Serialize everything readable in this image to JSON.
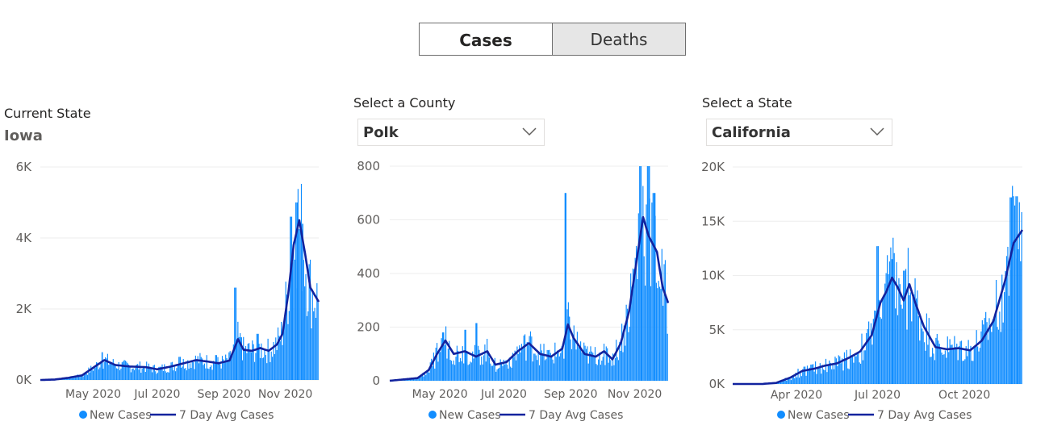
{
  "tabs": {
    "cases_label": "Cases",
    "deaths_label": "Deaths"
  },
  "panels": {
    "state": {
      "heading": "Current State",
      "value": "Iowa"
    },
    "county": {
      "heading": "Select a County",
      "value": "Polk"
    },
    "select_state": {
      "heading": "Select a State",
      "value": "California"
    }
  },
  "colors": {
    "bars": "#118dff",
    "avg": "#12239e",
    "grid": "#eeeeee"
  },
  "chart_data": [
    {
      "type": "bar",
      "name": "Iowa",
      "x_ticks": [
        "May 2020",
        "Jul 2020",
        "Sep 2020",
        "Nov 2020"
      ],
      "x_tick_pos": [
        0.19,
        0.42,
        0.66,
        0.88
      ],
      "y_ticks": [
        "0K",
        "2K",
        "4K",
        "6K"
      ],
      "y_tick_values": [
        0,
        2000,
        4000,
        6000
      ],
      "ylim": [
        0,
        6000
      ],
      "legend": [
        "New Cases",
        "7 Day Avg Cases"
      ],
      "avg_profile": [
        [
          0,
          0
        ],
        [
          0.05,
          10
        ],
        [
          0.1,
          60
        ],
        [
          0.15,
          130
        ],
        [
          0.2,
          400
        ],
        [
          0.23,
          560
        ],
        [
          0.27,
          420
        ],
        [
          0.32,
          380
        ],
        [
          0.38,
          360
        ],
        [
          0.42,
          300
        ],
        [
          0.47,
          380
        ],
        [
          0.52,
          480
        ],
        [
          0.56,
          560
        ],
        [
          0.6,
          520
        ],
        [
          0.64,
          470
        ],
        [
          0.68,
          550
        ],
        [
          0.71,
          1150
        ],
        [
          0.73,
          850
        ],
        [
          0.76,
          820
        ],
        [
          0.79,
          900
        ],
        [
          0.82,
          820
        ],
        [
          0.85,
          1000
        ],
        [
          0.87,
          1300
        ],
        [
          0.89,
          2400
        ],
        [
          0.91,
          3800
        ],
        [
          0.93,
          4500
        ],
        [
          0.95,
          3600
        ],
        [
          0.97,
          2600
        ],
        [
          1,
          2200
        ]
      ],
      "spikes": [
        [
          0.22,
          780
        ],
        [
          0.5,
          650
        ],
        [
          0.63,
          700
        ],
        [
          0.7,
          2600
        ],
        [
          0.72,
          1200
        ],
        [
          0.78,
          1300
        ],
        [
          0.9,
          4600
        ],
        [
          0.92,
          5000
        ],
        [
          0.94,
          4400
        ]
      ]
    },
    {
      "type": "bar",
      "name": "Polk",
      "x_ticks": [
        "May 2020",
        "Jul 2020",
        "Sep 2020",
        "Nov 2020"
      ],
      "x_tick_pos": [
        0.18,
        0.41,
        0.65,
        0.88
      ],
      "y_ticks": [
        "0",
        "200",
        "400",
        "600",
        "800"
      ],
      "y_tick_values": [
        0,
        200,
        400,
        600,
        800
      ],
      "ylim": [
        0,
        800
      ],
      "legend": [
        "New Cases",
        "7 Day Avg Cases"
      ],
      "avg_profile": [
        [
          0,
          0
        ],
        [
          0.05,
          5
        ],
        [
          0.1,
          10
        ],
        [
          0.14,
          40
        ],
        [
          0.17,
          100
        ],
        [
          0.2,
          150
        ],
        [
          0.23,
          100
        ],
        [
          0.27,
          110
        ],
        [
          0.31,
          90
        ],
        [
          0.35,
          110
        ],
        [
          0.38,
          60
        ],
        [
          0.42,
          70
        ],
        [
          0.46,
          110
        ],
        [
          0.5,
          140
        ],
        [
          0.54,
          100
        ],
        [
          0.58,
          90
        ],
        [
          0.62,
          120
        ],
        [
          0.64,
          210
        ],
        [
          0.66,
          160
        ],
        [
          0.7,
          100
        ],
        [
          0.74,
          90
        ],
        [
          0.77,
          110
        ],
        [
          0.8,
          80
        ],
        [
          0.83,
          140
        ],
        [
          0.86,
          260
        ],
        [
          0.89,
          470
        ],
        [
          0.91,
          610
        ],
        [
          0.93,
          540
        ],
        [
          0.96,
          480
        ],
        [
          0.98,
          350
        ],
        [
          1,
          290
        ]
      ],
      "spikes": [
        [
          0.19,
          180
        ],
        [
          0.27,
          190
        ],
        [
          0.31,
          215
        ],
        [
          0.63,
          700
        ],
        [
          0.64,
          240
        ],
        [
          0.9,
          810
        ],
        [
          0.93,
          810
        ],
        [
          0.95,
          700
        ]
      ]
    },
    {
      "type": "bar",
      "name": "California",
      "x_ticks": [
        "Apr 2020",
        "Jul 2020",
        "Oct 2020"
      ],
      "x_tick_pos": [
        0.22,
        0.5,
        0.8
      ],
      "y_ticks": [
        "0K",
        "5K",
        "10K",
        "15K",
        "20K"
      ],
      "y_tick_values": [
        0,
        5000,
        10000,
        15000,
        20000
      ],
      "ylim": [
        0,
        20000
      ],
      "legend": [
        "New Cases",
        "7 Day Avg Cases"
      ],
      "avg_profile": [
        [
          0,
          0
        ],
        [
          0.1,
          0
        ],
        [
          0.15,
          100
        ],
        [
          0.2,
          600
        ],
        [
          0.24,
          1200
        ],
        [
          0.28,
          1400
        ],
        [
          0.32,
          1700
        ],
        [
          0.36,
          1900
        ],
        [
          0.4,
          2400
        ],
        [
          0.44,
          3000
        ],
        [
          0.48,
          4500
        ],
        [
          0.51,
          7500
        ],
        [
          0.53,
          8500
        ],
        [
          0.55,
          9800
        ],
        [
          0.57,
          8900
        ],
        [
          0.59,
          7700
        ],
        [
          0.61,
          9200
        ],
        [
          0.63,
          7500
        ],
        [
          0.66,
          5300
        ],
        [
          0.7,
          3400
        ],
        [
          0.74,
          3200
        ],
        [
          0.78,
          3300
        ],
        [
          0.82,
          3100
        ],
        [
          0.86,
          4000
        ],
        [
          0.9,
          5800
        ],
        [
          0.94,
          9500
        ],
        [
          0.97,
          13000
        ],
        [
          1,
          14200
        ]
      ],
      "spikes": [
        [
          0.5,
          12700
        ],
        [
          0.55,
          11500
        ],
        [
          0.96,
          17200
        ],
        [
          0.98,
          17300
        ]
      ]
    }
  ]
}
